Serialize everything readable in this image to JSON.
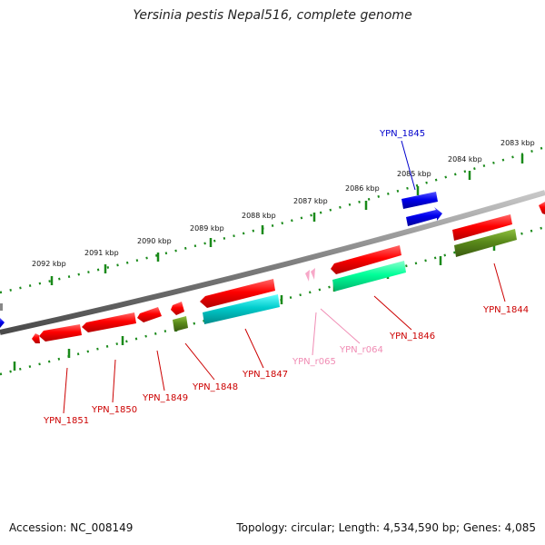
{
  "map": {
    "title": "Yersinia pestis Nepal516, complete genome",
    "accession": "Accession: NC_008149",
    "summary": "Topology: circular; Length: 4,534,590 bp; Genes: 4,085"
  },
  "scale_ticks": [
    "2083 kbp",
    "2084 kbp",
    "2085 kbp",
    "2086 kbp",
    "2087 kbp",
    "2088 kbp",
    "2089 kbp",
    "2090 kbp",
    "2091 kbp",
    "2092 kbp"
  ],
  "genes": [
    {
      "name": "YPN_1845",
      "color": "#0000cc"
    },
    {
      "name": "YPN_1844",
      "color": "#cc0000"
    },
    {
      "name": "YPN_1846",
      "color": "#cc0000"
    },
    {
      "name": "YPN_r064",
      "color": "#f08cb4"
    },
    {
      "name": "YPN_r065",
      "color": "#f08cb4"
    },
    {
      "name": "YPN_1847",
      "color": "#cc0000"
    },
    {
      "name": "YPN_1848",
      "color": "#cc0000"
    },
    {
      "name": "YPN_1849",
      "color": "#cc0000"
    },
    {
      "name": "YPN_1850",
      "color": "#cc0000"
    },
    {
      "name": "YPN_1851",
      "color": "#cc0000"
    }
  ],
  "colors": {
    "backbone": "#808080",
    "ticks": "#1a8a1a",
    "cds_red": "#ff0000",
    "cds_blue": "#0000ee",
    "cds_teal": "#00cccc",
    "cds_green": "#00ff99",
    "cds_olive": "#5a8a1a",
    "rna_pink": "#f7a8c8"
  }
}
